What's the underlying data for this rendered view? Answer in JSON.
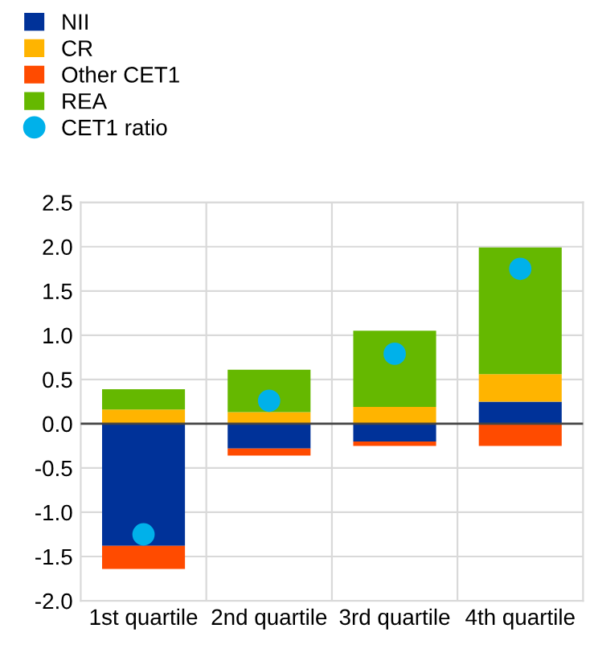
{
  "chart_data": {
    "type": "bar",
    "stacked": true,
    "categories": [
      "1st quartile",
      "2nd quartile",
      "3rd quartile",
      "4th quartile"
    ],
    "series": [
      {
        "name": "NII",
        "color": "#003299",
        "values": [
          -1.38,
          -0.28,
          -0.2,
          0.25
        ]
      },
      {
        "name": "CR",
        "color": "#ffb400",
        "values": [
          0.16,
          0.13,
          0.19,
          0.31
        ]
      },
      {
        "name": "Other CET1",
        "color": "#ff4b00",
        "values": [
          -0.26,
          -0.08,
          -0.05,
          -0.25
        ]
      },
      {
        "name": "REA",
        "color": "#65b800",
        "values": [
          0.23,
          0.48,
          0.86,
          1.43
        ]
      },
      {
        "name": "CET1 ratio",
        "color": "#00b1ea",
        "type": "scatter",
        "values": [
          -1.25,
          0.26,
          0.79,
          1.75
        ]
      }
    ],
    "ylim": [
      -2.0,
      2.5
    ],
    "yticks": [
      {
        "value": -2.0,
        "label": "-2.0"
      },
      {
        "value": -1.5,
        "label": "-1.5"
      },
      {
        "value": -1.0,
        "label": "-1.0"
      },
      {
        "value": -0.5,
        "label": "-0.5"
      },
      {
        "value": 0.0,
        "label": "0.0"
      },
      {
        "value": 0.5,
        "label": "0.5"
      },
      {
        "value": 1.0,
        "label": "1.0"
      },
      {
        "value": 1.5,
        "label": "1.5"
      },
      {
        "value": 2.0,
        "label": "2.0"
      },
      {
        "value": 2.5,
        "label": "2.5"
      }
    ],
    "grid": true,
    "legend": "top left",
    "marker": "circle"
  }
}
